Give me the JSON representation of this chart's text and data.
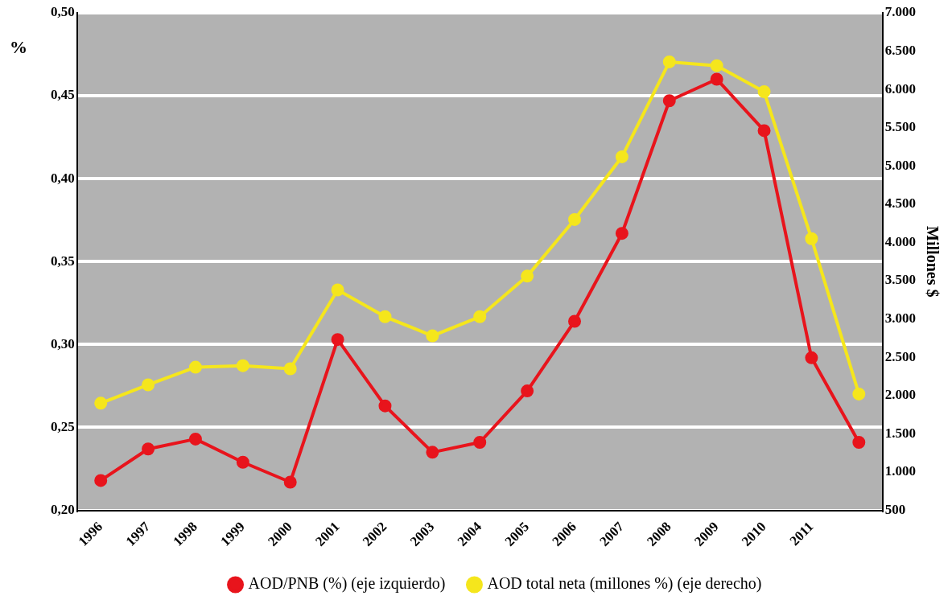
{
  "chart_data": {
    "type": "line",
    "categories": [
      "1996",
      "1997",
      "1998",
      "1999",
      "2000",
      "2001",
      "2002",
      "2003",
      "2004",
      "2005",
      "2006",
      "2007",
      "2008",
      "2009",
      "2010",
      "2011",
      null
    ],
    "ylabel": "%",
    "y2label": "Millones $",
    "series": [
      {
        "name": "AOD/PNB (%) (eje izquierdo)",
        "color": "#e8141c",
        "values": [
          0.218,
          0.237,
          0.243,
          0.229,
          0.217,
          0.303,
          0.263,
          0.235,
          0.241,
          0.272,
          0.314,
          0.367,
          0.447,
          0.46,
          0.429,
          0.292,
          0.241
        ]
      },
      {
        "name": "AOD total neta (millones %) (eje derecho)",
        "color": "#f5e61c",
        "axis": "y2",
        "values": [
          1900,
          2140,
          2370,
          2390,
          2350,
          3380,
          3030,
          2780,
          3030,
          3560,
          4300,
          5120,
          6360,
          6310,
          5970,
          4050,
          2020
        ]
      }
    ],
    "ylim": [
      0.2,
      0.5
    ],
    "yticks": [
      {
        "value": 0.2,
        "label": "0,20"
      },
      {
        "value": 0.25,
        "label": "0,25"
      },
      {
        "value": 0.3,
        "label": "0,30"
      },
      {
        "value": 0.35,
        "label": "0,35"
      },
      {
        "value": 0.4,
        "label": "0,40"
      },
      {
        "value": 0.45,
        "label": "0,45"
      },
      {
        "value": 0.5,
        "label": "0,50"
      }
    ],
    "y2lim": [
      500,
      7000
    ],
    "y2ticks": [
      500,
      {
        "value": 1000,
        "label": "1.000"
      },
      {
        "value": 1500,
        "label": "1.500"
      },
      {
        "value": 2000,
        "label": "2.000"
      },
      {
        "value": 2500,
        "label": "2.500"
      },
      {
        "value": 3000,
        "label": "3.000"
      },
      {
        "value": 3500,
        "label": "3.500"
      },
      {
        "value": 4000,
        "label": "4.000"
      },
      {
        "value": 4500,
        "label": "4.500"
      },
      {
        "value": 5000,
        "label": "5.000"
      },
      {
        "value": 5500,
        "label": "5.500"
      },
      {
        "value": 6000,
        "label": "6.000"
      },
      {
        "value": 6500,
        "label": "6.500"
      },
      {
        "value": 7000,
        "label": "7.000"
      }
    ],
    "grid": "y",
    "legend": "bottom",
    "marker": "circle",
    "line_style": "solid"
  }
}
